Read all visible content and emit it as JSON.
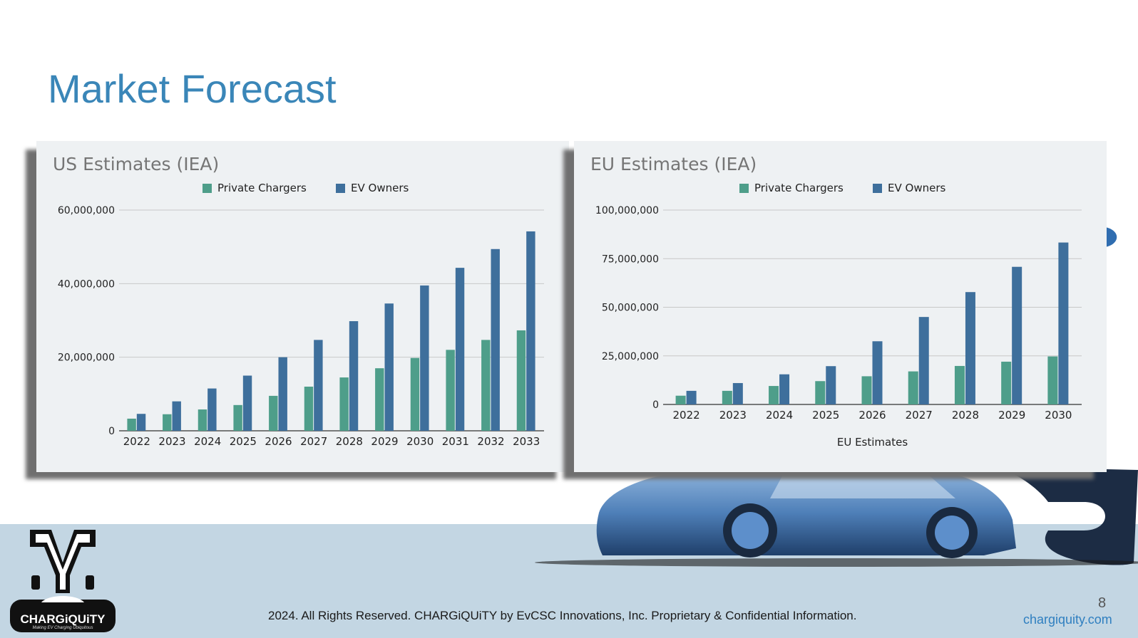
{
  "slide": {
    "title": "Market Forecast",
    "copyright": "2024. All Rights Reserved. CHARGiQUiTY by EvCSC Innovations, Inc.  Proprietary & Confidential Information.",
    "page_number": "8",
    "website": "chargiquity.com",
    "logo": {
      "name": "CHARGiQUiTY",
      "tagline": "Making EV Charging Ubiquitous"
    }
  },
  "colors": {
    "private_chargers": "#4e9e8a",
    "ev_owners": "#3e6f9c",
    "title": "#3a86b8",
    "footer_band": "#c3d6e3"
  },
  "chart_data": [
    {
      "type": "bar",
      "title": "US Estimates (IEA)",
      "xlabel": "",
      "ylabel": "",
      "categories": [
        "2022",
        "2023",
        "2024",
        "2025",
        "2026",
        "2027",
        "2028",
        "2029",
        "2030",
        "2031",
        "2032",
        "2033"
      ],
      "series": [
        {
          "name": "Private Chargers",
          "values": [
            3300000,
            4500000,
            5800000,
            7000000,
            9500000,
            12000000,
            14500000,
            17000000,
            19800000,
            22000000,
            24700000,
            27300000
          ]
        },
        {
          "name": "EV Owners",
          "values": [
            4600000,
            8000000,
            11500000,
            15000000,
            20000000,
            24700000,
            29800000,
            34600000,
            39500000,
            44300000,
            49400000,
            54200000
          ]
        }
      ],
      "ylim": [
        0,
        60000000
      ],
      "yticks": [
        0,
        20000000,
        40000000,
        60000000
      ],
      "ytick_labels": [
        "0",
        "20,000,000",
        "40,000,000",
        "60,000,000"
      ],
      "legend": "top-center",
      "grid": true
    },
    {
      "type": "bar",
      "title": "EU Estimates (IEA)",
      "xlabel": "EU Estimates",
      "ylabel": "",
      "categories": [
        "2022",
        "2023",
        "2024",
        "2025",
        "2026",
        "2027",
        "2028",
        "2029",
        "2030"
      ],
      "series": [
        {
          "name": "Private Chargers",
          "values": [
            4500000,
            7000000,
            9500000,
            12000000,
            14500000,
            17000000,
            19800000,
            22000000,
            24700000
          ]
        },
        {
          "name": "EV Owners",
          "values": [
            7000000,
            11000000,
            15500000,
            19700000,
            32500000,
            45000000,
            57800000,
            70800000,
            83300000
          ]
        }
      ],
      "ylim": [
        0,
        100000000
      ],
      "yticks": [
        0,
        25000000,
        50000000,
        75000000,
        100000000
      ],
      "ytick_labels": [
        "0",
        "25,000,000",
        "50,000,000",
        "75,000,000",
        "100,000,000"
      ],
      "legend": "top-center",
      "grid": true
    }
  ]
}
